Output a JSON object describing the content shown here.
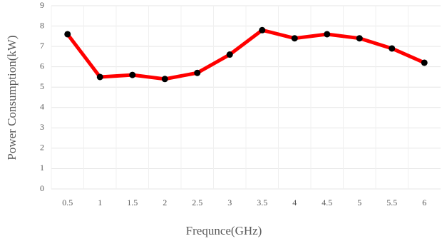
{
  "chart_data": {
    "type": "line",
    "x_label": "Frequnce(GHz)",
    "y_label": "Power Consumption(kW)",
    "categories": [
      "0.5",
      "1",
      "1.5",
      "2",
      "2.5",
      "3",
      "3.5",
      "4",
      "4.5",
      "5",
      "5.5",
      "6"
    ],
    "series": [
      {
        "name": "Power Consumption(kW)",
        "color": "#ff0000",
        "marker_color": "#000000",
        "values": [
          7.6,
          5.5,
          5.6,
          5.4,
          5.7,
          6.6,
          7.8,
          7.4,
          7.6,
          7.4,
          6.9,
          6.2
        ]
      }
    ],
    "ylim": [
      0,
      9
    ],
    "yticks": [
      0,
      1,
      2,
      3,
      4,
      5,
      6,
      7,
      8,
      9
    ],
    "grid": true
  }
}
